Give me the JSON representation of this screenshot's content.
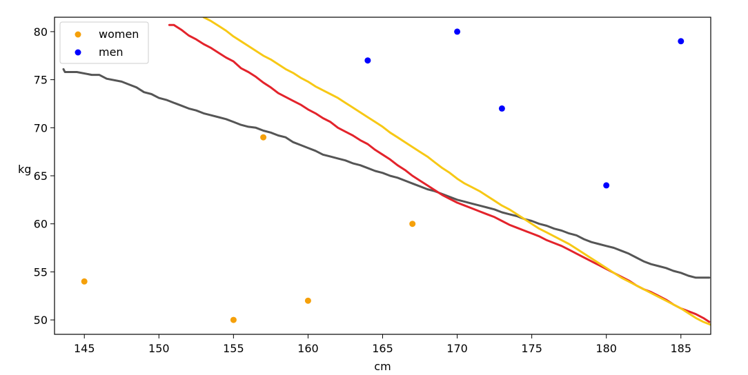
{
  "chart_data": {
    "type": "scatter",
    "title": "",
    "xlabel": "cm",
    "ylabel": "kg",
    "xlim": [
      143,
      187
    ],
    "ylim": [
      48.5,
      81.5
    ],
    "xticks": [
      145,
      150,
      155,
      160,
      165,
      170,
      175,
      180,
      185
    ],
    "yticks": [
      50,
      55,
      60,
      65,
      70,
      75,
      80
    ],
    "grid": false,
    "legend": "top-left",
    "series": [
      {
        "name": "women",
        "kind": "scatter",
        "color": "#f5a00a",
        "points": [
          [
            145,
            54
          ],
          [
            155,
            50
          ],
          [
            157,
            69
          ],
          [
            160,
            52
          ],
          [
            167,
            60
          ]
        ]
      },
      {
        "name": "men",
        "kind": "scatter",
        "color": "#0000ff",
        "points": [
          [
            164,
            77
          ],
          [
            170,
            80
          ],
          [
            173,
            72
          ],
          [
            180,
            64
          ],
          [
            185,
            79
          ]
        ]
      }
    ],
    "lines": [
      {
        "name": "dark-gray-line",
        "color": "#555555",
        "points": [
          [
            143.6,
            76.1
          ],
          [
            143.7,
            75.8
          ],
          [
            144.5,
            75.8
          ],
          [
            145.5,
            75.5
          ],
          [
            146.0,
            75.5
          ],
          [
            146.5,
            75.1
          ],
          [
            147.5,
            74.8
          ],
          [
            148.0,
            74.5
          ],
          [
            148.5,
            74.2
          ],
          [
            149.0,
            73.7
          ],
          [
            149.5,
            73.5
          ],
          [
            150.0,
            73.1
          ],
          [
            150.5,
            72.9
          ],
          [
            151.0,
            72.6
          ],
          [
            151.5,
            72.3
          ],
          [
            152.0,
            72.0
          ],
          [
            152.5,
            71.8
          ],
          [
            153.0,
            71.5
          ],
          [
            153.5,
            71.3
          ],
          [
            154.0,
            71.1
          ],
          [
            154.5,
            70.9
          ],
          [
            155.0,
            70.6
          ],
          [
            155.5,
            70.3
          ],
          [
            156.0,
            70.1
          ],
          [
            156.5,
            70.0
          ],
          [
            157.0,
            69.7
          ],
          [
            157.5,
            69.5
          ],
          [
            158.0,
            69.2
          ],
          [
            158.5,
            69.0
          ],
          [
            159.0,
            68.5
          ],
          [
            159.5,
            68.2
          ],
          [
            160.0,
            67.9
          ],
          [
            160.5,
            67.6
          ],
          [
            161.0,
            67.2
          ],
          [
            161.5,
            67.0
          ],
          [
            162.0,
            66.8
          ],
          [
            162.5,
            66.6
          ],
          [
            163.0,
            66.3
          ],
          [
            163.5,
            66.1
          ],
          [
            164.0,
            65.8
          ],
          [
            164.5,
            65.5
          ],
          [
            165.0,
            65.3
          ],
          [
            165.5,
            65.0
          ],
          [
            166.0,
            64.8
          ],
          [
            166.5,
            64.5
          ],
          [
            167.0,
            64.2
          ],
          [
            167.5,
            63.9
          ],
          [
            168.0,
            63.6
          ],
          [
            168.5,
            63.4
          ],
          [
            169.0,
            63.1
          ],
          [
            169.5,
            62.8
          ],
          [
            170.0,
            62.5
          ],
          [
            170.5,
            62.3
          ],
          [
            171.0,
            62.1
          ],
          [
            171.5,
            61.9
          ],
          [
            172.0,
            61.7
          ],
          [
            172.5,
            61.5
          ],
          [
            173.0,
            61.2
          ],
          [
            173.5,
            61.0
          ],
          [
            174.0,
            60.8
          ],
          [
            174.5,
            60.5
          ],
          [
            175.0,
            60.3
          ],
          [
            175.5,
            60.0
          ],
          [
            176.0,
            59.8
          ],
          [
            176.5,
            59.5
          ],
          [
            177.0,
            59.3
          ],
          [
            177.5,
            59.0
          ],
          [
            178.0,
            58.8
          ],
          [
            178.5,
            58.4
          ],
          [
            179.0,
            58.1
          ],
          [
            179.5,
            57.9
          ],
          [
            180.0,
            57.7
          ],
          [
            180.5,
            57.5
          ],
          [
            181.0,
            57.2
          ],
          [
            181.5,
            56.9
          ],
          [
            182.0,
            56.5
          ],
          [
            182.5,
            56.1
          ],
          [
            183.0,
            55.8
          ],
          [
            183.5,
            55.6
          ],
          [
            184.0,
            55.4
          ],
          [
            184.5,
            55.1
          ],
          [
            185.0,
            54.9
          ],
          [
            185.5,
            54.6
          ],
          [
            186.0,
            54.4
          ],
          [
            186.9,
            54.4
          ]
        ]
      },
      {
        "name": "red-line",
        "color": "#e3232b",
        "points": [
          [
            150.7,
            80.7
          ],
          [
            151.0,
            80.7
          ],
          [
            151.5,
            80.2
          ],
          [
            152.0,
            79.6
          ],
          [
            152.5,
            79.2
          ],
          [
            153.0,
            78.7
          ],
          [
            153.5,
            78.3
          ],
          [
            154.0,
            77.8
          ],
          [
            154.5,
            77.3
          ],
          [
            155.0,
            76.9
          ],
          [
            155.5,
            76.2
          ],
          [
            156.0,
            75.8
          ],
          [
            156.5,
            75.3
          ],
          [
            157.0,
            74.7
          ],
          [
            157.5,
            74.2
          ],
          [
            158.0,
            73.6
          ],
          [
            158.5,
            73.2
          ],
          [
            159.0,
            72.8
          ],
          [
            159.5,
            72.4
          ],
          [
            160.0,
            71.9
          ],
          [
            160.5,
            71.5
          ],
          [
            161.0,
            71.0
          ],
          [
            161.5,
            70.6
          ],
          [
            162.0,
            70.0
          ],
          [
            162.5,
            69.6
          ],
          [
            163.0,
            69.2
          ],
          [
            163.5,
            68.7
          ],
          [
            164.0,
            68.3
          ],
          [
            164.5,
            67.7
          ],
          [
            165.0,
            67.2
          ],
          [
            165.5,
            66.7
          ],
          [
            166.0,
            66.1
          ],
          [
            166.5,
            65.6
          ],
          [
            167.0,
            65.0
          ],
          [
            167.5,
            64.5
          ],
          [
            168.0,
            64.0
          ],
          [
            168.5,
            63.5
          ],
          [
            169.0,
            63.0
          ],
          [
            169.5,
            62.6
          ],
          [
            170.0,
            62.2
          ],
          [
            170.5,
            61.9
          ],
          [
            171.0,
            61.6
          ],
          [
            171.5,
            61.3
          ],
          [
            172.0,
            61.0
          ],
          [
            172.5,
            60.7
          ],
          [
            173.0,
            60.3
          ],
          [
            173.5,
            59.9
          ],
          [
            174.0,
            59.6
          ],
          [
            174.5,
            59.3
          ],
          [
            175.0,
            59.0
          ],
          [
            175.5,
            58.7
          ],
          [
            176.0,
            58.3
          ],
          [
            176.5,
            58.0
          ],
          [
            177.0,
            57.7
          ],
          [
            177.5,
            57.3
          ],
          [
            178.0,
            56.9
          ],
          [
            178.5,
            56.5
          ],
          [
            179.0,
            56.1
          ],
          [
            179.5,
            55.7
          ],
          [
            180.0,
            55.3
          ],
          [
            180.5,
            54.9
          ],
          [
            181.0,
            54.5
          ],
          [
            181.5,
            54.1
          ],
          [
            182.0,
            53.6
          ],
          [
            182.5,
            53.2
          ],
          [
            183.0,
            52.9
          ],
          [
            183.5,
            52.5
          ],
          [
            184.0,
            52.1
          ],
          [
            184.5,
            51.6
          ],
          [
            185.0,
            51.2
          ],
          [
            185.5,
            50.9
          ],
          [
            186.0,
            50.6
          ],
          [
            186.5,
            50.2
          ],
          [
            186.9,
            49.8
          ]
        ]
      },
      {
        "name": "yellow-line",
        "color": "#f7c815",
        "points": [
          [
            153.0,
            81.5
          ],
          [
            153.5,
            81.1
          ],
          [
            154.0,
            80.6
          ],
          [
            154.5,
            80.1
          ],
          [
            155.0,
            79.5
          ],
          [
            155.5,
            79.0
          ],
          [
            156.0,
            78.5
          ],
          [
            156.5,
            78.0
          ],
          [
            157.0,
            77.5
          ],
          [
            157.5,
            77.1
          ],
          [
            158.0,
            76.6
          ],
          [
            158.5,
            76.1
          ],
          [
            159.0,
            75.7
          ],
          [
            159.5,
            75.2
          ],
          [
            160.0,
            74.8
          ],
          [
            160.5,
            74.3
          ],
          [
            161.0,
            73.9
          ],
          [
            161.5,
            73.5
          ],
          [
            162.0,
            73.1
          ],
          [
            162.5,
            72.6
          ],
          [
            163.0,
            72.1
          ],
          [
            163.5,
            71.6
          ],
          [
            164.0,
            71.1
          ],
          [
            164.5,
            70.6
          ],
          [
            165.0,
            70.1
          ],
          [
            165.5,
            69.5
          ],
          [
            166.0,
            69.0
          ],
          [
            166.5,
            68.5
          ],
          [
            167.0,
            68.0
          ],
          [
            167.5,
            67.5
          ],
          [
            168.0,
            67.0
          ],
          [
            168.5,
            66.4
          ],
          [
            169.0,
            65.8
          ],
          [
            169.5,
            65.3
          ],
          [
            170.0,
            64.7
          ],
          [
            170.5,
            64.2
          ],
          [
            171.0,
            63.8
          ],
          [
            171.5,
            63.4
          ],
          [
            172.0,
            62.9
          ],
          [
            172.5,
            62.4
          ],
          [
            173.0,
            61.9
          ],
          [
            173.5,
            61.5
          ],
          [
            174.0,
            61.0
          ],
          [
            174.5,
            60.5
          ],
          [
            175.0,
            60.0
          ],
          [
            175.5,
            59.5
          ],
          [
            176.0,
            59.1
          ],
          [
            176.5,
            58.7
          ],
          [
            177.0,
            58.3
          ],
          [
            177.5,
            57.9
          ],
          [
            178.0,
            57.4
          ],
          [
            178.5,
            56.9
          ],
          [
            179.0,
            56.4
          ],
          [
            179.5,
            55.9
          ],
          [
            180.0,
            55.4
          ],
          [
            180.5,
            54.9
          ],
          [
            181.0,
            54.4
          ],
          [
            181.5,
            54.0
          ],
          [
            182.0,
            53.6
          ],
          [
            182.5,
            53.2
          ],
          [
            183.0,
            52.8
          ],
          [
            183.5,
            52.4
          ],
          [
            184.0,
            52.0
          ],
          [
            184.5,
            51.6
          ],
          [
            185.0,
            51.2
          ],
          [
            185.5,
            50.7
          ],
          [
            186.0,
            50.2
          ],
          [
            186.5,
            49.8
          ],
          [
            187.0,
            49.5
          ]
        ]
      }
    ]
  }
}
